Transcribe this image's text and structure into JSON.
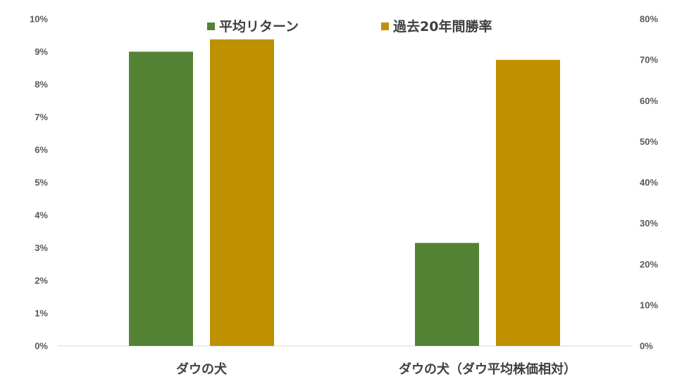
{
  "chart_data": {
    "type": "bar",
    "categories": [
      "ダウの犬",
      "ダウの犬（ダウ平均株価相対）"
    ],
    "series": [
      {
        "name": "平均リターン",
        "axis": "left",
        "color": "#548235",
        "values": [
          9.0,
          3.15
        ]
      },
      {
        "name": "過去20年間勝率",
        "axis": "right",
        "color": "#bf9000",
        "values": [
          75.0,
          70.0
        ]
      }
    ],
    "y_left": {
      "min": 0,
      "max": 10,
      "step": 1,
      "tick_suffix": "%"
    },
    "y_right": {
      "min": 0,
      "max": 80,
      "step": 10,
      "tick_suffix": "%"
    },
    "legend_position": "top-center",
    "grid": false,
    "title": "",
    "xlabel": "",
    "ylabel": ""
  }
}
